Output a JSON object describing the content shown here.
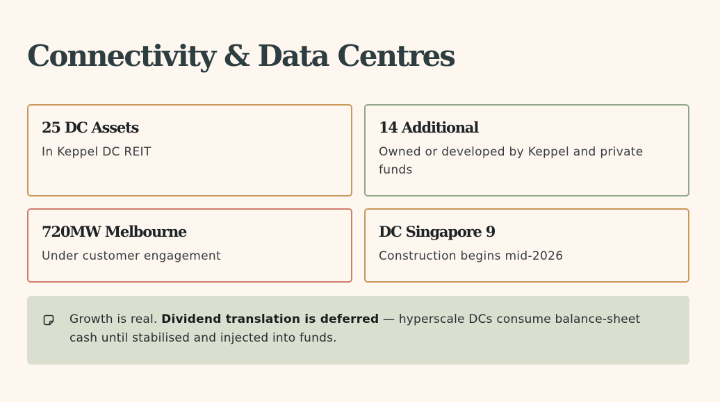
{
  "page": {
    "title": "Connectivity & Data Centres"
  },
  "cards": [
    {
      "title": "25 DC Assets",
      "description": "In Keppel DC REIT",
      "accent": "#c9985a"
    },
    {
      "title": "14 Additional",
      "description": "Owned or developed by Keppel and private funds",
      "accent": "#8fa88c"
    },
    {
      "title": "720MW Melbourne",
      "description": "Under customer engagement",
      "accent": "#d27c6c"
    },
    {
      "title": "DC Singapore 9",
      "description": "Construction begins mid-2026",
      "accent": "#c9985a"
    }
  ],
  "note": {
    "icon": "note-icon",
    "lead": "Growth is real.",
    "emphasis": "Dividend translation is deferred",
    "rest": "— hyperscale DCs consume balance-sheet cash until stabilised and injected into funds."
  },
  "colors": {
    "background": "#fdf7f0",
    "title": "#2d3d40",
    "note_background": "#dadfd0"
  }
}
